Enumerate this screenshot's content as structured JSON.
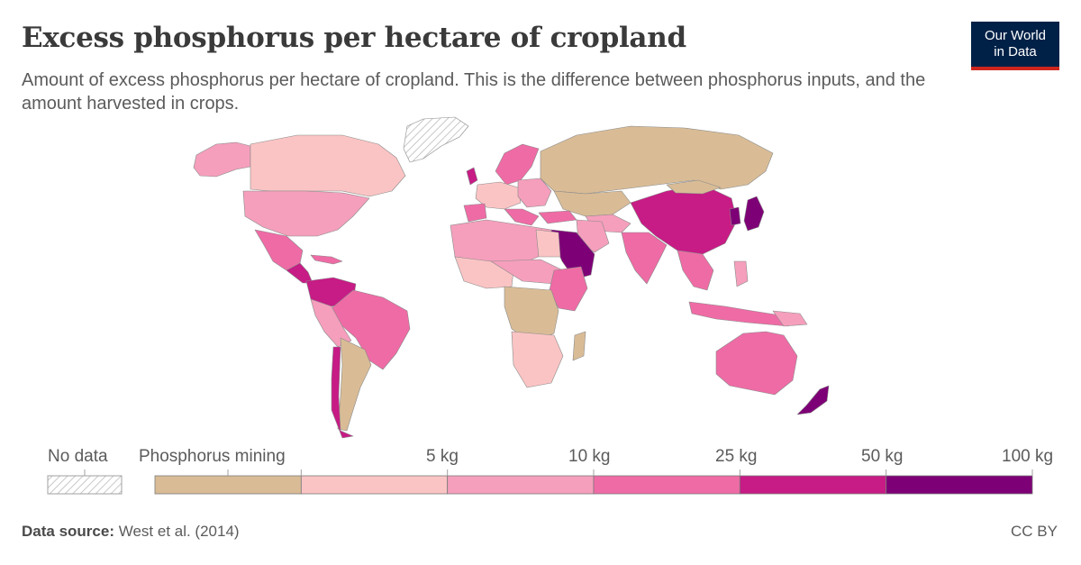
{
  "header": {
    "title": "Excess phosphorus per hectare of cropland",
    "subtitle": "Amount of excess phosphorus per hectare of cropland. This is the difference between phosphorus inputs, and the amount harvested in crops."
  },
  "logo": {
    "line1": "Our World",
    "line2": "in Data"
  },
  "legend": {
    "no_data_label": "No data",
    "bins": [
      {
        "label": "Phosphorus mining",
        "color": "#d9bc96"
      },
      {
        "label": "",
        "color": "#fbc4c4"
      },
      {
        "label": "",
        "color": "#f59fbc"
      },
      {
        "label": "",
        "color": "#ef6ba5"
      },
      {
        "label": "",
        "color": "#c71b85"
      },
      {
        "label": "",
        "color": "#7e0076"
      }
    ],
    "thresholds": [
      "5 kg",
      "10 kg",
      "25 kg",
      "50 kg",
      "100 kg"
    ]
  },
  "footer": {
    "source_label": "Data source:",
    "source_text": "West et al. (2014)",
    "license": "CC BY"
  },
  "colors": {
    "no_data": "#e6e6e6",
    "ocean": "#ffffff",
    "border": "#8a8a8a",
    "logo_bg": "#002147",
    "logo_accent": "#ce261e"
  }
}
